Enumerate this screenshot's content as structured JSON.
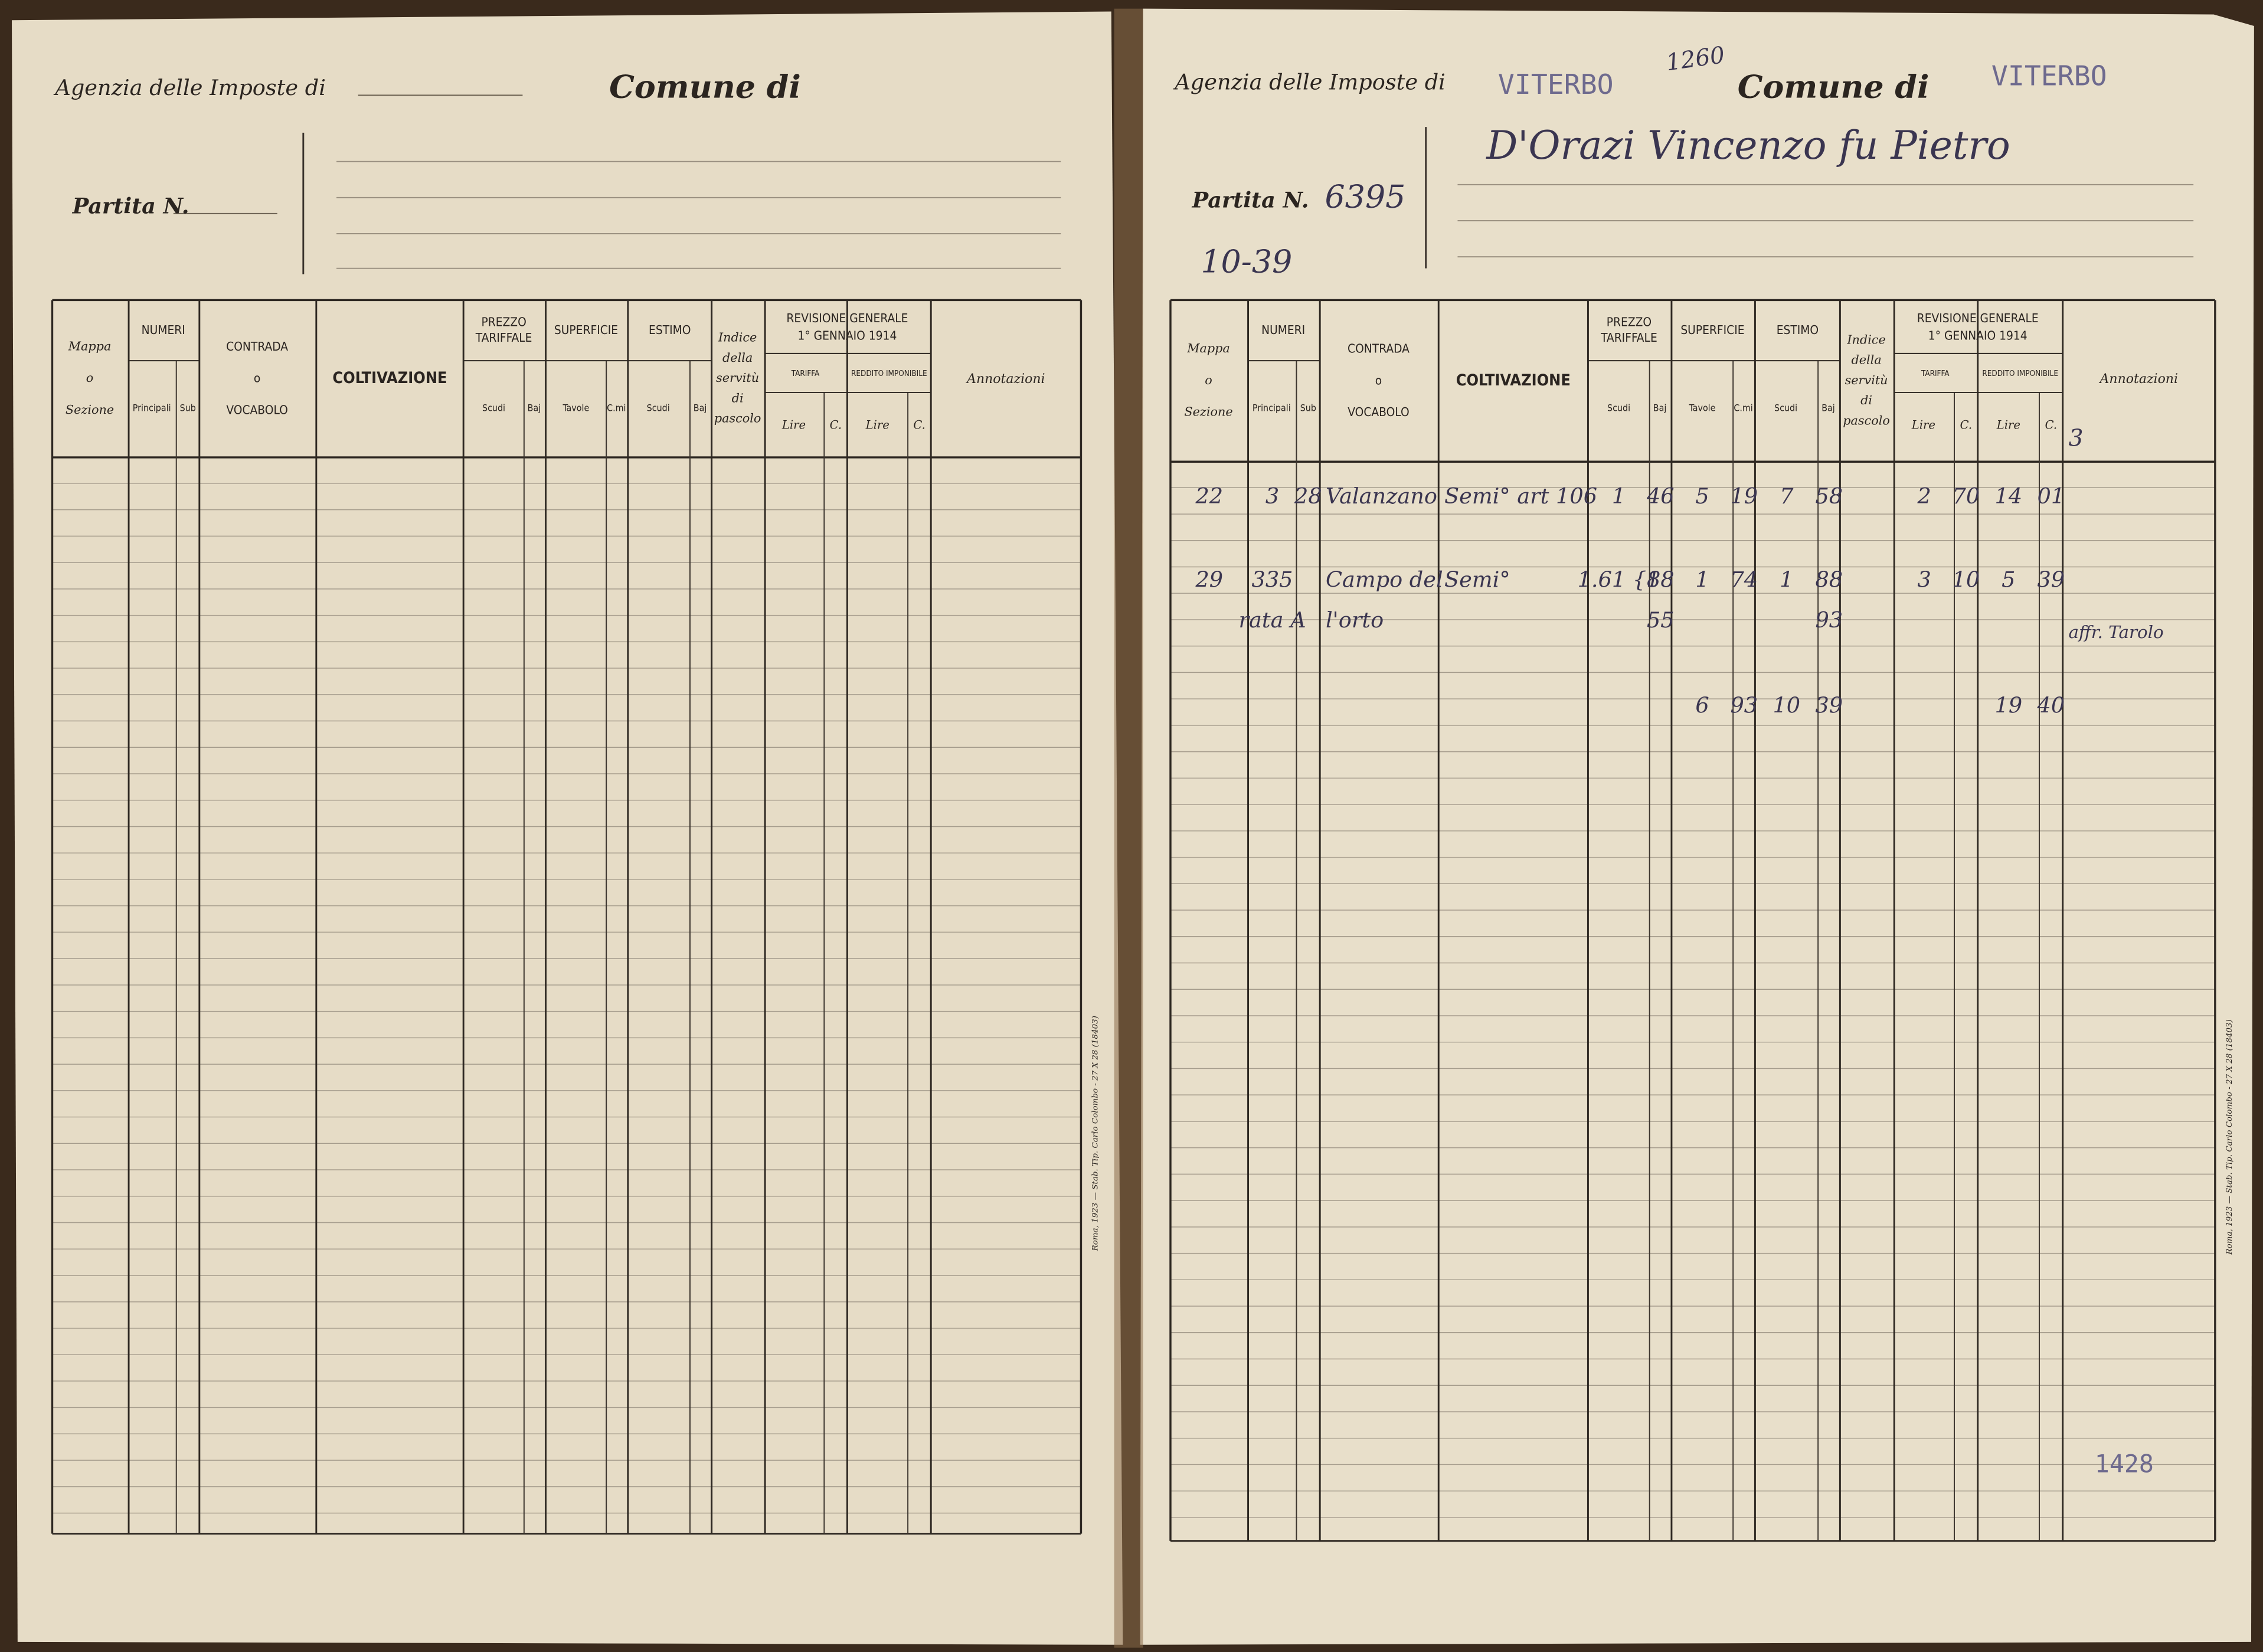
{
  "form": {
    "agency": "Agenzia delle Imposte di",
    "comune": "Comune di",
    "partita": "Partita N.",
    "columns": {
      "mappa": [
        "Mappa",
        "o",
        "Sezione"
      ],
      "numeri": "NUMERI",
      "principali": "Principali",
      "sub": "Sub",
      "contrada": [
        "CONTRADA",
        "o",
        "VOCABOLO"
      ],
      "coltivazione": "COLTIVAZIONE",
      "prezzo": [
        "PREZZO",
        "TARIFFALE"
      ],
      "scudi": "Scudi",
      "baj": "Baj",
      "superficie": "SUPERFICIE",
      "tavole": "Tavole",
      "cmi": "C.mi",
      "estimo": "ESTIMO",
      "indice": [
        "Indice",
        "della",
        "servitù",
        "di",
        "pascolo"
      ],
      "revisione": [
        "REVISIONE GENERALE",
        "1° GENNAIO 1914"
      ],
      "tariffa": "TARIFFA",
      "reddito": "REDDITO IMPONIBILE",
      "lire": "Lire",
      "c": "C.",
      "annotazioni": "Annotazioni"
    },
    "imprint": "Roma, 1923 — Stab. Tip. Carlo Colombo - 27 X 28 (18403)"
  },
  "right_page": {
    "agency_value": "VITERBO",
    "number_note": "1260",
    "comune_value": "VITERBO",
    "owner": "D'Orazi Vincenzo fu Pietro",
    "partita_value": "6395",
    "partita_note": "10-39",
    "column_mark": "3",
    "stamp": "1428",
    "rows": [
      {
        "mappa": "22",
        "principali": "3",
        "sub": "28",
        "contrada": "Valanzano",
        "coltivazione": "Semi° art 106",
        "prezzo_scudi": "1",
        "prezzo_baj": "46",
        "sup_tavole": "5",
        "sup_cmi": "19",
        "estimo_scudi": "7",
        "estimo_baj": "58",
        "tariffa_lire": "2",
        "tariffa_c": "70",
        "reddito_lire": "14",
        "reddito_c": "01"
      },
      {
        "mappa": "29",
        "principali": [
          "335",
          "rata A"
        ],
        "contrada": [
          "Campo del",
          "l'orto"
        ],
        "coltivazione": "Semi°",
        "prezzo_scudi": "1.61 {1",
        "prezzo_baj": [
          "88",
          "55"
        ],
        "sup_tavole": "1",
        "sup_cmi": "74",
        "estimo_scudi": "1",
        "estimo_baj": [
          "88",
          "93"
        ],
        "tariffa_lire": "3",
        "tariffa_c": "10",
        "reddito_lire": "5",
        "reddito_c": "39",
        "annotazioni": "affr. Tarolo"
      },
      {
        "sup_tavole": "6",
        "sup_cmi": "93",
        "estimo_scudi": "10",
        "estimo_baj": "39",
        "reddito_lire": "19",
        "reddito_c": "40"
      }
    ]
  }
}
